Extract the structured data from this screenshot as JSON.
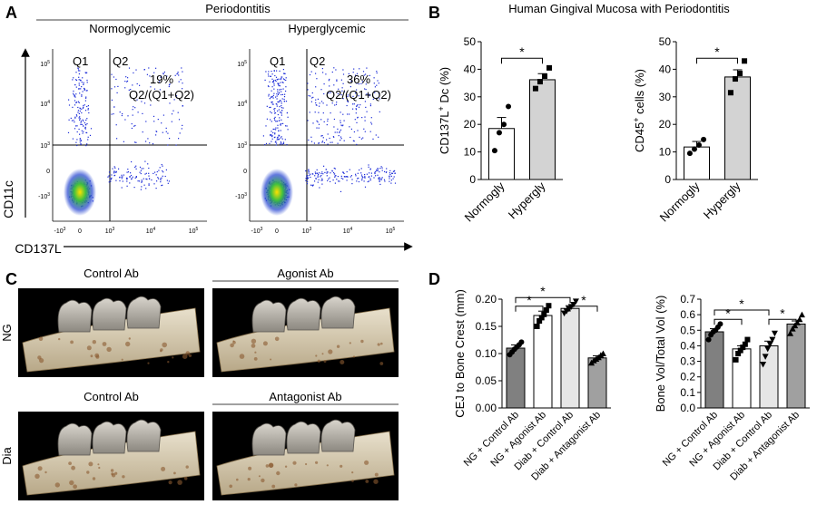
{
  "panels": {
    "A": {
      "letter": "A",
      "title": "Periodontitis",
      "x_axis_label": "CD137L",
      "y_axis_label": "CD11c",
      "x_tick_labels": [
        "-10",
        "0",
        "10",
        "10",
        "10"
      ],
      "x_tick_exps": [
        "3",
        "",
        "3",
        "4",
        "5"
      ],
      "y_tick_labels": [
        "10",
        "10",
        "10",
        "0",
        "-10"
      ],
      "y_tick_exps": [
        "5",
        "4",
        "3",
        "",
        "3"
      ],
      "plots": [
        {
          "name": "Normoglycemic",
          "q1": "Q1",
          "q2": "Q2",
          "pct": "19%",
          "formula": "Q2/(Q1+Q2)"
        },
        {
          "name": "Hyperglycemic",
          "q1": "Q1",
          "q2": "Q2",
          "pct": "36%",
          "formula": "Q2/(Q1+Q2)"
        }
      ]
    },
    "B": {
      "letter": "B",
      "title": "Human Gingival Mucosa with Periodontitis",
      "significance": "*",
      "charts": [
        {
          "ylabel_main": "CD137L",
          "ylabel_sup": "+",
          "ylabel_tail": " Dc (%)",
          "ylim": [
            0,
            50
          ],
          "yticks": [
            "0",
            "10",
            "20",
            "30",
            "40",
            "50"
          ],
          "categories": [
            "Normogly",
            "Hypergly"
          ],
          "bar_colors": [
            "#ffffff",
            "#d3d3d3"
          ],
          "values": [
            18.5,
            36.2
          ],
          "sem": [
            4.0,
            2.2
          ],
          "points": [
            [
              10.5,
              17.0,
              20.0,
              26.5
            ],
            [
              33.0,
              35.5,
              37.5,
              40.5
            ]
          ],
          "markers": [
            "circle",
            "square"
          ]
        },
        {
          "ylabel_main": "CD45",
          "ylabel_sup": "+",
          "ylabel_tail": " cells (%)",
          "ylim": [
            0,
            50
          ],
          "yticks": [
            "0",
            "10",
            "20",
            "30",
            "40",
            "50"
          ],
          "categories": [
            "Normogly",
            "Hypergly"
          ],
          "bar_colors": [
            "#ffffff",
            "#d3d3d3"
          ],
          "values": [
            11.8,
            37.2
          ],
          "sem": [
            2.0,
            2.6
          ],
          "points": [
            [
              9.5,
              11.0,
              12.5,
              14.5
            ],
            [
              31.5,
              36.5,
              38.5,
              43.0
            ]
          ],
          "markers": [
            "circle",
            "square"
          ]
        }
      ]
    },
    "C": {
      "letter": "C",
      "row_labels": [
        "NG",
        "Dia"
      ],
      "image_titles": [
        "Control Ab",
        "Agonist Ab",
        "Control Ab",
        "Antagonist Ab"
      ]
    },
    "D": {
      "letter": "D",
      "significance": "*",
      "charts": [
        {
          "ylabel": "CEJ to Bone Crest (mm)",
          "ylim": [
            0,
            0.2
          ],
          "yticks": [
            "0.00",
            "0.05",
            "0.10",
            "0.15",
            "0.20"
          ],
          "categories": [
            "NG + Control Ab",
            "NG + Agonist Ab",
            "Diab + Control Ab",
            "Diab + Antagonist Ab"
          ],
          "bar_colors": [
            "#808080",
            "#ffffff",
            "#e6e6e6",
            "#a0a0a0"
          ],
          "values": [
            0.11,
            0.17,
            0.183,
            0.092
          ],
          "sem": [
            0.006,
            0.008,
            0.005,
            0.004
          ],
          "points": [
            [
              0.098,
              0.103,
              0.108,
              0.112,
              0.116,
              0.121
            ],
            [
              0.15,
              0.16,
              0.166,
              0.172,
              0.18,
              0.188
            ],
            [
              0.174,
              0.178,
              0.182,
              0.186,
              0.19,
              0.196
            ],
            [
              0.083,
              0.087,
              0.09,
              0.093,
              0.097,
              0.1
            ]
          ],
          "markers": [
            "circle",
            "square",
            "triangle-down",
            "triangle-up"
          ]
        },
        {
          "ylabel": "Bone Vol/Total Vol (%)",
          "ylim": [
            0,
            0.7
          ],
          "yticks": [
            "0.0",
            "0.1",
            "0.2",
            "0.3",
            "0.4",
            "0.5",
            "0.6",
            "0.7"
          ],
          "categories": [
            "NG + Control Ab",
            "NG + Agonist Ab",
            "Diab + Control Ab",
            "Diab + Antagonist Ab"
          ],
          "bar_colors": [
            "#808080",
            "#ffffff",
            "#e6e6e6",
            "#a0a0a0"
          ],
          "values": [
            0.49,
            0.38,
            0.4,
            0.54
          ],
          "sem": [
            0.02,
            0.02,
            0.03,
            0.02
          ],
          "points": [
            [
              0.44,
              0.47,
              0.49,
              0.5,
              0.52,
              0.54
            ],
            [
              0.31,
              0.35,
              0.37,
              0.39,
              0.41,
              0.44
            ],
            [
              0.28,
              0.33,
              0.38,
              0.41,
              0.44,
              0.48
            ],
            [
              0.48,
              0.51,
              0.53,
              0.55,
              0.57,
              0.6
            ]
          ],
          "markers": [
            "circle",
            "square",
            "triangle-down",
            "triangle-up"
          ]
        }
      ]
    }
  },
  "chart_data": [
    {
      "type": "scatter",
      "panel": "A",
      "title": "Normoglycemic",
      "xlabel": "CD137L",
      "ylabel": "CD11c",
      "quadrants": [
        "Q1",
        "Q2"
      ],
      "annotation": "19% Q2/(Q1+Q2)"
    },
    {
      "type": "scatter",
      "panel": "A",
      "title": "Hyperglycemic",
      "xlabel": "CD137L",
      "ylabel": "CD11c",
      "quadrants": [
        "Q1",
        "Q2"
      ],
      "annotation": "36% Q2/(Q1+Q2)"
    },
    {
      "type": "bar",
      "panel": "B",
      "categories": [
        "Normogly",
        "Hypergly"
      ],
      "values": [
        18.5,
        36.2
      ],
      "ylabel": "CD137L+ Dc (%)",
      "ylim": [
        0,
        50
      ]
    },
    {
      "type": "bar",
      "panel": "B",
      "categories": [
        "Normogly",
        "Hypergly"
      ],
      "values": [
        11.8,
        37.2
      ],
      "ylabel": "CD45+ cells (%)",
      "ylim": [
        0,
        50
      ]
    },
    {
      "type": "bar",
      "panel": "D",
      "categories": [
        "NG + Control Ab",
        "NG + Agonist Ab",
        "Diab + Control Ab",
        "Diab + Antagonist Ab"
      ],
      "values": [
        0.11,
        0.17,
        0.183,
        0.092
      ],
      "ylabel": "CEJ to Bone Crest (mm)",
      "ylim": [
        0,
        0.2
      ]
    },
    {
      "type": "bar",
      "panel": "D",
      "categories": [
        "NG + Control Ab",
        "NG + Agonist Ab",
        "Diab + Control Ab",
        "Diab + Antagonist Ab"
      ],
      "values": [
        0.49,
        0.38,
        0.4,
        0.54
      ],
      "ylabel": "Bone Vol/Total Vol (%)",
      "ylim": [
        0,
        0.7
      ]
    }
  ]
}
